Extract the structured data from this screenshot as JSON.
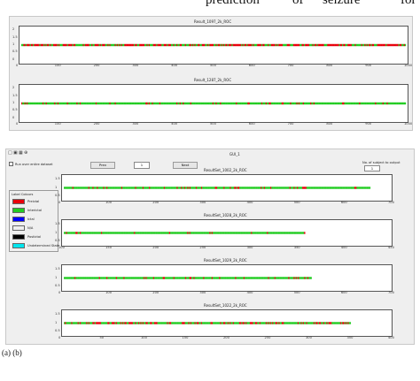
{
  "paper": {
    "header_words": [
      "prediction",
      "of",
      "seizure",
      "for"
    ],
    "caption": "(a) (b)"
  },
  "colors": {
    "preictal": "#e8000b",
    "interictal": "#22cc22",
    "ictal": "#0000ff",
    "postictal": "#000000",
    "window_bg": "#efefef"
  },
  "top_window": {
    "plots": [
      {
        "title": "Result_1097_2k_ROC",
        "yticks": [
          "2",
          "1.5",
          "1",
          "0.5",
          "0"
        ],
        "xticks": [
          "0",
          "100",
          "200",
          "300",
          "400",
          "500",
          "600",
          "700",
          "800",
          "900",
          "1000"
        ],
        "red_fraction": 0.55
      },
      {
        "title": "Result_1287_2k_ROC",
        "yticks": [
          "2",
          "1.5",
          "1",
          "0.5",
          "0"
        ],
        "xticks": [
          "0",
          "100",
          "200",
          "300",
          "400",
          "500",
          "600",
          "700",
          "800",
          "900",
          "1000"
        ],
        "red_fraction": 0.15
      }
    ]
  },
  "gui_window": {
    "title": "GUI_1",
    "toolbar_icons": [
      "open-icon",
      "save-icon",
      "print-icon",
      "zoom-icon"
    ],
    "checkbox_label": "Run over entire dataset",
    "prev_label": "Prev",
    "page_value": "1",
    "next_label": "Next",
    "right_label": "No. of subject to output",
    "right_value": "1",
    "legend": {
      "title": "Label Colours",
      "items": [
        {
          "label": "Preictal",
          "color": "#e8000b"
        },
        {
          "label": "Interictal",
          "color": "#22cc22"
        },
        {
          "label": "Ictal",
          "color": "#0000ff"
        },
        {
          "label": "N/A",
          "color": "#efefef"
        },
        {
          "label": "Postictal",
          "color": "#000000"
        },
        {
          "label": "Undetermined State",
          "color": "#00e5ee"
        }
      ]
    },
    "plots": [
      {
        "title": "ResultSet_1002_2k_ROC",
        "xticks": [
          "0",
          "100",
          "200",
          "300",
          "400",
          "500",
          "600",
          "700"
        ],
        "yticks": [
          "1.5",
          "1",
          "0.5"
        ],
        "data_extent": 0.94,
        "red_fraction": 0.12
      },
      {
        "title": "ResultSet_1028_2k_ROC",
        "xticks": [
          "100",
          "150",
          "200",
          "250",
          "300",
          "350",
          "400",
          "450"
        ],
        "yticks": [
          "1.5",
          "1",
          "0.5"
        ],
        "data_extent": 0.74,
        "red_fraction": 0.06
      },
      {
        "title": "ResultSet_1029_2k_ROC",
        "xticks": [
          "0",
          "100",
          "200",
          "300",
          "400",
          "500",
          "600",
          "700"
        ],
        "yticks": [
          "1.5",
          "1",
          "0.5"
        ],
        "data_extent": 0.76,
        "red_fraction": 0.1
      },
      {
        "title": "ResultSet_1022_2k_ROC",
        "xticks": [
          "0",
          "50",
          "100",
          "150",
          "200",
          "250",
          "300",
          "350",
          "400"
        ],
        "yticks": [
          "1.5",
          "1",
          "0.5"
        ],
        "data_extent": 0.88,
        "red_fraction": 0.35
      }
    ]
  }
}
